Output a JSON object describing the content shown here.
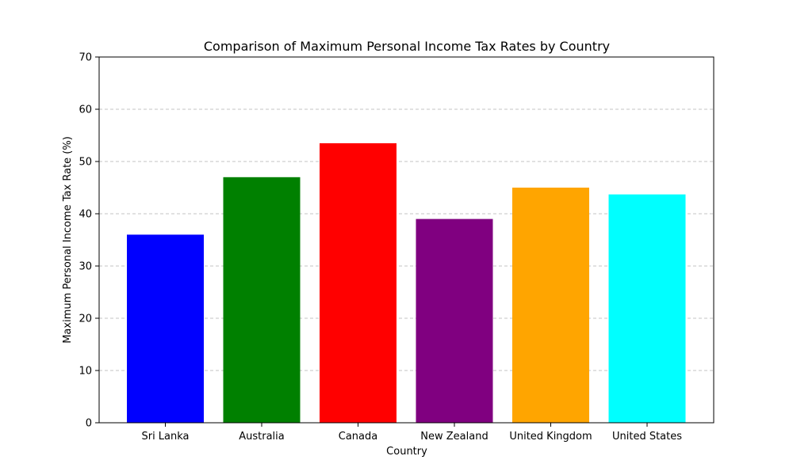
{
  "chart_data": {
    "type": "bar",
    "title": "Comparison of Maximum Personal Income Tax Rates by Country",
    "xlabel": "Country",
    "ylabel": "Maximum Personal Income Tax Rate (%)",
    "categories": [
      "Sri Lanka",
      "Australia",
      "Canada",
      "New Zealand",
      "United Kingdom",
      "United States"
    ],
    "values": [
      36,
      47,
      53.5,
      39,
      45,
      43.7
    ],
    "colors": [
      "#0000ff",
      "#008000",
      "#ff0000",
      "#800080",
      "#ffa500",
      "#00ffff"
    ],
    "ylim": [
      0,
      70
    ],
    "yticks": [
      0,
      10,
      20,
      30,
      40,
      50,
      60,
      70
    ],
    "grid": "y-dashed",
    "legend": "none"
  }
}
